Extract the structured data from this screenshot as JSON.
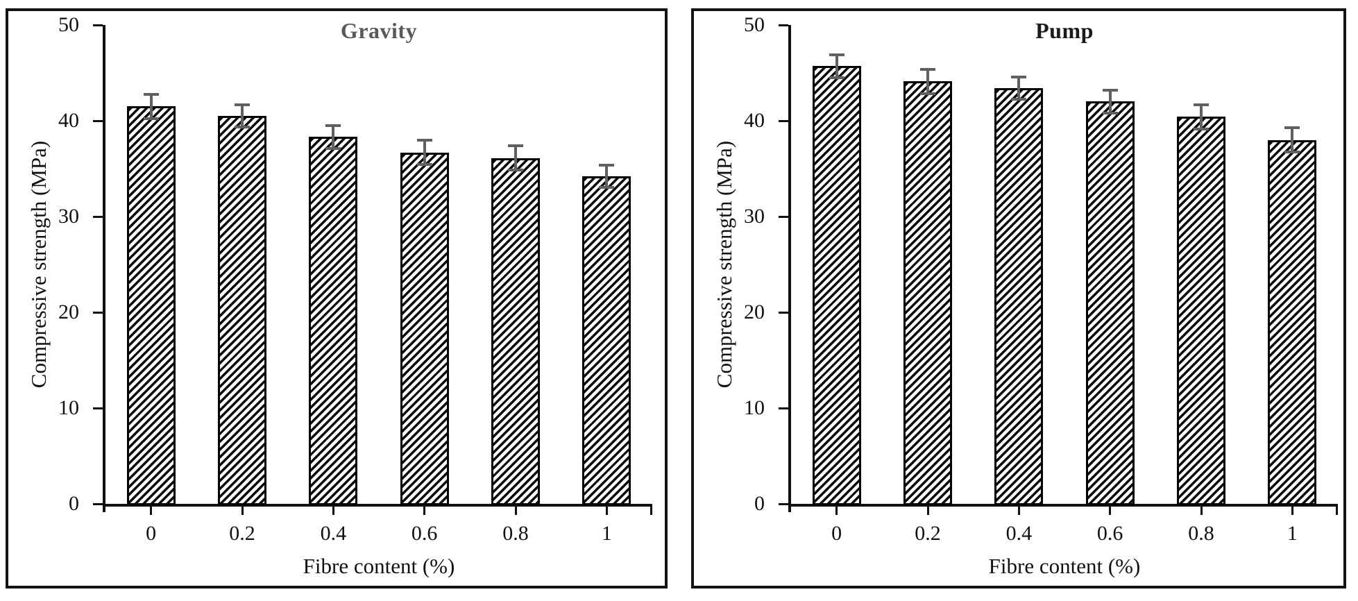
{
  "figure": {
    "background": "#ffffff",
    "frame_color": "#131313"
  },
  "chart_data": [
    {
      "type": "bar",
      "title": "Gravity",
      "title_color": "#595959",
      "xlabel": "Fibre content (%)",
      "ylabel": "Compressive strength (MPa)",
      "categories": [
        "0",
        "0.2",
        "0.4",
        "0.6",
        "0.8",
        "1"
      ],
      "values": [
        41.5,
        40.5,
        38.3,
        36.7,
        36.1,
        34.2
      ],
      "errors": [
        1.2,
        1.1,
        1.1,
        1.2,
        1.2,
        1.1
      ],
      "ylim": [
        0,
        50
      ],
      "yticks": [
        0,
        10,
        20,
        30,
        40,
        50
      ],
      "grid": "off",
      "legend": "none",
      "bar_style": {
        "fill": "#ffffff",
        "hatch": "#0a0a0a",
        "hatch_pattern": "diagonal-up",
        "border": "#000000"
      },
      "error_color": "#606060"
    },
    {
      "type": "bar",
      "title": "Pump",
      "title_color": "#1a1a1a",
      "xlabel": "Fibre content (%)",
      "ylabel": "Compressive strength (MPa)",
      "categories": [
        "0",
        "0.2",
        "0.4",
        "0.6",
        "0.8",
        "1"
      ],
      "values": [
        45.7,
        44.1,
        43.4,
        42.0,
        40.4,
        38.0
      ],
      "errors": [
        1.1,
        1.2,
        1.1,
        1.1,
        1.2,
        1.2
      ],
      "ylim": [
        0,
        50
      ],
      "yticks": [
        0,
        10,
        20,
        30,
        40,
        50
      ],
      "grid": "off",
      "legend": "none",
      "bar_style": {
        "fill": "#ffffff",
        "hatch": "#0a0a0a",
        "hatch_pattern": "diagonal-up",
        "border": "#000000"
      },
      "error_color": "#606060"
    }
  ]
}
